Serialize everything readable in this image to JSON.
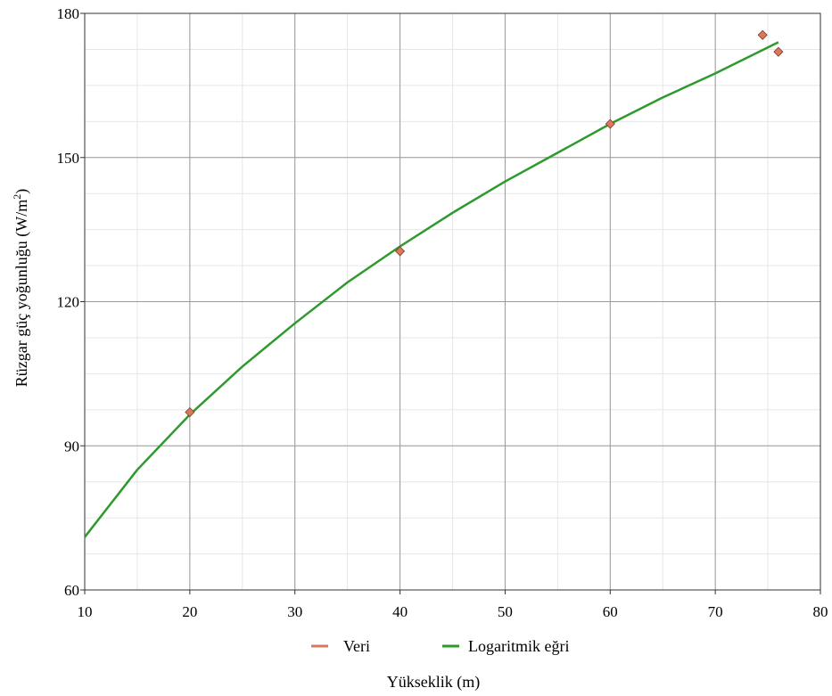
{
  "chart_data": {
    "type": "line",
    "xlabel": "Yükseklik (m)",
    "ylabel_main": "Rüzgar güç yoğunluğu (W/m",
    "ylabel_sup": "2",
    "ylabel_close": ")",
    "xlim": [
      10,
      80
    ],
    "ylim": [
      60,
      180
    ],
    "x_ticks": [
      10,
      20,
      30,
      40,
      50,
      60,
      70,
      80
    ],
    "y_ticks": [
      60,
      90,
      120,
      150,
      180
    ],
    "x_minor_step": 5,
    "y_minor_step": 7.5,
    "grid": true,
    "legend_position": "bottom",
    "series": [
      {
        "name": "Veri",
        "kind": "scatter",
        "marker": "diamond",
        "color": "#d9785c",
        "x": [
          20,
          40,
          60,
          74.5,
          76
        ],
        "y": [
          97,
          130.5,
          157,
          175.5,
          172
        ]
      },
      {
        "name": "Logaritmik eğri",
        "kind": "line",
        "color": "#2e9a2e",
        "x": [
          10,
          15,
          20,
          25,
          30,
          35,
          40,
          45,
          50,
          55,
          60,
          65,
          70,
          76
        ],
        "y": [
          71,
          85,
          96.5,
          106.5,
          115.5,
          124,
          131.5,
          138.5,
          145,
          151,
          157,
          162.5,
          167.5,
          174
        ]
      }
    ]
  }
}
